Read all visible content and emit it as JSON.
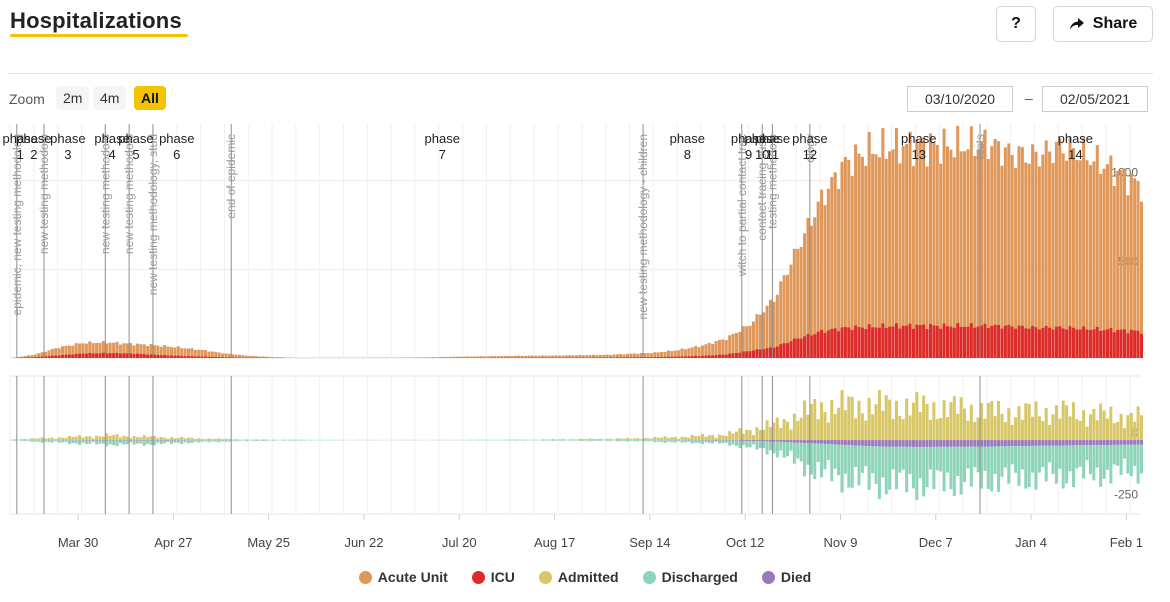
{
  "header": {
    "title": "Hospitalizations",
    "help_label": "?",
    "share_label": "Share",
    "share_icon": "share-arrow-icon",
    "accent_color": "#f4c400"
  },
  "toolbar": {
    "zoom_label": "Zoom",
    "zoom_options": [
      "2m",
      "4m",
      "All"
    ],
    "zoom_selected": "All",
    "date_from": "03/10/2020",
    "date_separator": "–",
    "date_to": "02/05/2021"
  },
  "chart_data": {
    "type": "bar",
    "x_range": [
      "2020-03-10",
      "2021-02-05"
    ],
    "x_ticks": [
      "Mar 30",
      "Apr 27",
      "May 25",
      "Jun 22",
      "Jul 20",
      "Aug 17",
      "Sep 14",
      "Oct 12",
      "Nov 9",
      "Dec 7",
      "Jan 4",
      "Feb 1"
    ],
    "panels": [
      {
        "name": "occupancy",
        "stacked": true,
        "y_ticks": [
          500,
          1000
        ],
        "ylim": [
          0,
          1320
        ],
        "series": [
          {
            "name": "Acute Unit",
            "color": "#e0975a"
          },
          {
            "name": "ICU",
            "color": "#dd2a2a"
          }
        ],
        "points_x": [
          "2020-03-10",
          "2020-03-17",
          "2020-03-24",
          "2020-03-31",
          "2020-04-07",
          "2020-04-14",
          "2020-04-21",
          "2020-04-28",
          "2020-05-05",
          "2020-05-12",
          "2020-05-19",
          "2020-05-26",
          "2020-06-02",
          "2020-06-30",
          "2020-07-07",
          "2020-07-21",
          "2020-08-04",
          "2020-08-18",
          "2020-09-01",
          "2020-09-15",
          "2020-09-22",
          "2020-09-29",
          "2020-10-06",
          "2020-10-13",
          "2020-10-20",
          "2020-10-27",
          "2020-11-03",
          "2020-11-10",
          "2020-11-17",
          "2020-11-24",
          "2020-12-01",
          "2020-12-08",
          "2020-12-15",
          "2020-12-22",
          "2020-12-29",
          "2021-01-05",
          "2021-01-12",
          "2021-01-19",
          "2021-01-26",
          "2021-02-05"
        ],
        "total": [
          0,
          20,
          60,
          85,
          88,
          80,
          72,
          60,
          45,
          25,
          12,
          5,
          1,
          2,
          3,
          8,
          12,
          14,
          18,
          30,
          45,
          70,
          110,
          190,
          330,
          620,
          900,
          1100,
          1170,
          1190,
          1200,
          1195,
          1200,
          1210,
          1150,
          1140,
          1190,
          1150,
          1080,
          970
        ],
        "icu": [
          0,
          5,
          15,
          25,
          28,
          25,
          18,
          12,
          8,
          4,
          2,
          1,
          0,
          0,
          0,
          1,
          2,
          2,
          3,
          5,
          8,
          12,
          20,
          40,
          60,
          110,
          150,
          170,
          175,
          180,
          182,
          180,
          180,
          182,
          178,
          170,
          172,
          165,
          160,
          150
        ]
      },
      {
        "name": "daily flows",
        "y_ticks": [
          0,
          -250
        ],
        "ylim": [
          -300,
          260
        ],
        "series": [
          {
            "name": "Admitted",
            "color": "#d8c766"
          },
          {
            "name": "Discharged",
            "color": "#8ed4b9"
          },
          {
            "name": "Died",
            "color": "#9a78bd"
          }
        ],
        "points_x": [
          "2020-03-10",
          "2020-03-24",
          "2020-04-07",
          "2020-04-21",
          "2020-05-05",
          "2020-05-19",
          "2020-06-16",
          "2020-07-14",
          "2020-08-11",
          "2020-09-08",
          "2020-09-22",
          "2020-10-06",
          "2020-10-20",
          "2020-11-03",
          "2020-11-17",
          "2020-12-01",
          "2020-12-15",
          "2020-12-29",
          "2021-01-12",
          "2021-01-26",
          "2021-02-05"
        ],
        "admitted": [
          2,
          10,
          18,
          12,
          6,
          2,
          1,
          1,
          2,
          6,
          12,
          22,
          60,
          135,
          140,
          135,
          125,
          110,
          115,
          100,
          90
        ],
        "discharged": [
          -2,
          -9,
          -16,
          -14,
          -7,
          -3,
          -1,
          -1,
          -2,
          -4,
          -8,
          -12,
          -40,
          -120,
          -145,
          -150,
          -140,
          -130,
          -125,
          -115,
          -105
        ],
        "died": [
          0,
          -1,
          -2,
          -2,
          -1,
          0,
          0,
          0,
          0,
          0,
          -1,
          -2,
          -6,
          -15,
          -25,
          -28,
          -27,
          -25,
          -22,
          -20,
          -18
        ]
      }
    ],
    "phases": [
      {
        "label": "phase",
        "number": "1",
        "date": "2020-03-13"
      },
      {
        "label": "phase",
        "number": "2",
        "date": "2020-03-17"
      },
      {
        "label": "phase",
        "number": "3",
        "date": "2020-03-27"
      },
      {
        "label": "phase",
        "number": "4",
        "date": "2020-04-09"
      },
      {
        "label": "phase",
        "number": "5",
        "date": "2020-04-16"
      },
      {
        "label": "phase",
        "number": "6",
        "date": "2020-04-28"
      },
      {
        "label": "phase",
        "number": "7",
        "date": "2020-07-15"
      },
      {
        "label": "phase",
        "number": "8",
        "date": "2020-09-25"
      },
      {
        "label": "phase",
        "number": "9",
        "date": "2020-10-13"
      },
      {
        "label": "phase",
        "number": "10",
        "date": "2020-10-17"
      },
      {
        "label": "phase",
        "number": "11",
        "date": "2020-10-20"
      },
      {
        "label": "phase",
        "number": "12",
        "date": "2020-10-31"
      },
      {
        "label": "phase",
        "number": "13",
        "date": "2020-12-02"
      },
      {
        "label": "phase",
        "number": "14",
        "date": "2021-01-17"
      }
    ],
    "events": [
      {
        "date": "2020-03-12",
        "text": "epidemic, new testing methodolog"
      },
      {
        "date": "2020-03-20",
        "text": "new testing methodolo"
      },
      {
        "date": "2020-04-07",
        "text": "new testing methodolo"
      },
      {
        "date": "2020-04-14",
        "text": "new testing methodolo"
      },
      {
        "date": "2020-04-21",
        "text": "new testing methodology, stud"
      },
      {
        "date": "2020-05-14",
        "text": "end of epidemic"
      },
      {
        "date": "2020-09-12",
        "text": "new testing methodology - children"
      },
      {
        "date": "2020-10-11",
        "text": "witch to partial contact trac"
      },
      {
        "date": "2020-10-17",
        "text": "contact tracing susp"
      },
      {
        "date": "2020-10-20",
        "text": "testing methodolo"
      },
      {
        "date": "2020-10-31",
        "text": "ology"
      },
      {
        "date": "2020-12-20",
        "text": "tests"
      }
    ]
  },
  "legend": [
    {
      "label": "Acute Unit",
      "color": "#e0975a"
    },
    {
      "label": "ICU",
      "color": "#dd2a2a"
    },
    {
      "label": "Admitted",
      "color": "#d8c766"
    },
    {
      "label": "Discharged",
      "color": "#8ed4b9"
    },
    {
      "label": "Died",
      "color": "#9a78bd"
    }
  ]
}
